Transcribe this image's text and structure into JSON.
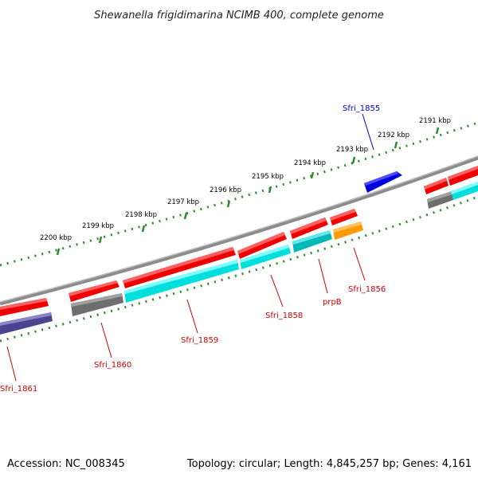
{
  "title": "Shewanella frigidimarina NCIMB 400, complete genome",
  "footer": {
    "accession": "Accession: NC_008345",
    "summary": "Topology: circular; Length: 4,845,257 bp; Genes: 4,161"
  },
  "ticks": [
    "2200 kbp",
    "2199 kbp",
    "2198 kbp",
    "2197 kbp",
    "2196 kbp",
    "2195 kbp",
    "2194 kbp",
    "2193 kbp",
    "2192 kbp",
    "2191 kbp"
  ],
  "gene_labels": [
    "Sfri_1855",
    "Sfri_1856",
    "prpB",
    "Sfri_1858",
    "Sfri_1859",
    "Sfri_1860",
    "Sfri_1861"
  ],
  "colors": {
    "backbone": "#8c8c8c",
    "tick_track": "#2e8b2e",
    "forward_gene": "#0000dd",
    "reverse_gene": "#ee0000",
    "cds_cyan": "#00dede",
    "cds_gray": "#6e6e6e",
    "cds_orange": "#ff9900",
    "cds_purple": "#4a4490",
    "label_blue": "#0000cc",
    "label_red": "#cc0000"
  }
}
